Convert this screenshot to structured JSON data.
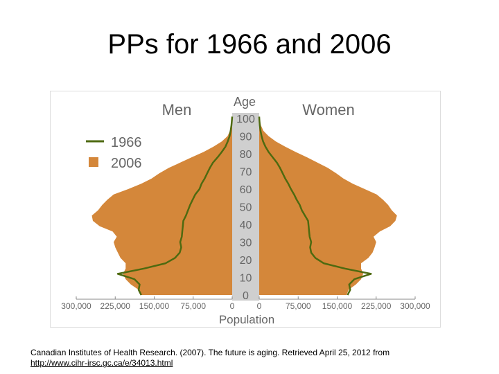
{
  "slide": {
    "title": "PPs for 1966 and 2006",
    "citation_text": "Canadian Institutes of Health Research. (2007). The future is aging. Retrieved April 25, 2012 from",
    "citation_link": "http://www.cihr-irsc.gc.ca/e/34013.html"
  },
  "chart_data": {
    "type": "area",
    "left_panel_title": "Men",
    "right_panel_title": "Women",
    "center_axis_label": "Age",
    "xlabel": "Population",
    "age_ticks": [
      "100",
      "90",
      "80",
      "70",
      "60",
      "50",
      "40",
      "30",
      "20",
      "10",
      "0"
    ],
    "men_population_ticks": [
      "300,000",
      "225,000",
      "150,000",
      "75,000",
      "0"
    ],
    "women_population_ticks": [
      "0",
      "75,000",
      "150,000",
      "225,000",
      "300,000"
    ],
    "xlim": [
      0,
      300000
    ],
    "ylim": [
      0,
      100
    ],
    "colors": {
      "pop_2006": "#D4873A",
      "line_1966": "#4E6A10",
      "axis_strip": "#CFCFCF"
    },
    "series": [
      {
        "name": "1966",
        "style": "line",
        "ages": [
          0,
          3,
          6,
          9,
          12,
          15,
          18,
          21,
          24,
          27,
          30,
          33,
          36,
          39,
          42,
          45,
          48,
          51,
          54,
          57,
          60,
          63,
          66,
          69,
          72,
          75,
          78,
          81,
          84,
          87,
          90,
          93,
          96,
          99,
          101
        ],
        "men": [
          175000,
          180000,
          178000,
          188000,
          220000,
          170000,
          128000,
          110000,
          101000,
          98000,
          100000,
          97000,
          96000,
          95000,
          94000,
          89000,
          85000,
          81000,
          76000,
          71000,
          63000,
          59000,
          53000,
          48000,
          43000,
          37000,
          28000,
          20000,
          13000,
          8500,
          5000,
          3000,
          1500,
          500,
          0
        ],
        "women": [
          170000,
          175000,
          173000,
          183000,
          215000,
          165000,
          124000,
          108000,
          100000,
          98000,
          100000,
          97000,
          96000,
          95000,
          94000,
          88000,
          82000,
          78000,
          72000,
          67000,
          61000,
          56000,
          50000,
          45000,
          40000,
          34000,
          26000,
          18000,
          12000,
          7500,
          4500,
          2500,
          1200,
          400,
          0
        ]
      },
      {
        "name": "2006",
        "style": "area",
        "ages": [
          0,
          3,
          6,
          9,
          12,
          15,
          18,
          21,
          24,
          27,
          30,
          33,
          36,
          39,
          42,
          45,
          48,
          51,
          54,
          57,
          60,
          63,
          66,
          69,
          72,
          75,
          78,
          81,
          84,
          87,
          90,
          93,
          96,
          99,
          101
        ],
        "men": [
          175000,
          180000,
          195000,
          205000,
          210000,
          205000,
          205000,
          215000,
          220000,
          225000,
          228000,
          222000,
          230000,
          255000,
          268000,
          270000,
          258000,
          250000,
          240000,
          228000,
          200000,
          175000,
          155000,
          140000,
          122000,
          100000,
          78000,
          55000,
          36000,
          20000,
          9000,
          4000,
          1800,
          800,
          0
        ],
        "women": [
          168000,
          172000,
          186000,
          196000,
          200000,
          196000,
          196000,
          210000,
          218000,
          222000,
          225000,
          220000,
          232000,
          252000,
          262000,
          265000,
          255000,
          248000,
          238000,
          226000,
          203000,
          180000,
          162000,
          148000,
          132000,
          112000,
          92000,
          70000,
          50000,
          32000,
          18000,
          8000,
          3500,
          1200,
          0
        ]
      }
    ],
    "legend": {
      "position": "top-left",
      "entries": [
        "1966",
        "2006"
      ]
    },
    "grid": false
  }
}
